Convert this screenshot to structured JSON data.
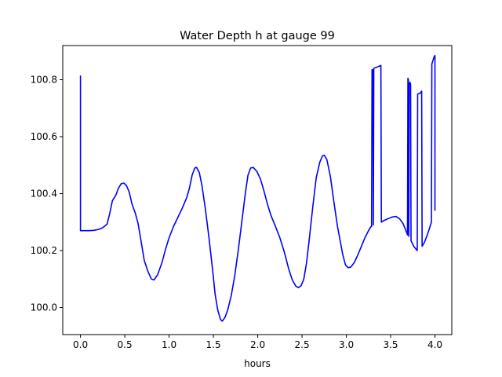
{
  "chart_data": {
    "type": "line",
    "title": "Water Depth h at gauge 99",
    "xlabel": "hours",
    "ylabel": "",
    "xlim": [
      -0.2,
      4.19
    ],
    "ylim": [
      99.905,
      100.92
    ],
    "xticks": [
      0.0,
      0.5,
      1.0,
      1.5,
      2.0,
      2.5,
      3.0,
      3.5,
      4.0
    ],
    "xtick_labels": [
      "0.0",
      "0.5",
      "1.0",
      "1.5",
      "2.0",
      "2.5",
      "3.0",
      "3.5",
      "4.0"
    ],
    "yticks": [
      100.0,
      100.2,
      100.4,
      100.6,
      100.8
    ],
    "ytick_labels": [
      "100.0",
      "100.2",
      "100.4",
      "100.6",
      "100.8"
    ],
    "grid": false,
    "legend": "none",
    "series": [
      {
        "color": "#0000ff",
        "points": [
          [
            0.0,
            100.815
          ],
          [
            0.0,
            100.27
          ],
          [
            0.05,
            100.27
          ],
          [
            0.1,
            100.27
          ],
          [
            0.15,
            100.271
          ],
          [
            0.2,
            100.274
          ],
          [
            0.25,
            100.28
          ],
          [
            0.3,
            100.293
          ],
          [
            0.33,
            100.33
          ],
          [
            0.36,
            100.375
          ],
          [
            0.4,
            100.395
          ],
          [
            0.43,
            100.42
          ],
          [
            0.46,
            100.435
          ],
          [
            0.49,
            100.437
          ],
          [
            0.52,
            100.428
          ],
          [
            0.55,
            100.405
          ],
          [
            0.58,
            100.365
          ],
          [
            0.62,
            100.33
          ],
          [
            0.65,
            100.295
          ],
          [
            0.68,
            100.24
          ],
          [
            0.72,
            100.165
          ],
          [
            0.76,
            100.128
          ],
          [
            0.8,
            100.1
          ],
          [
            0.83,
            100.097
          ],
          [
            0.87,
            100.115
          ],
          [
            0.92,
            100.158
          ],
          [
            0.96,
            100.205
          ],
          [
            1.0,
            100.245
          ],
          [
            1.05,
            100.285
          ],
          [
            1.1,
            100.317
          ],
          [
            1.15,
            100.35
          ],
          [
            1.2,
            100.387
          ],
          [
            1.23,
            100.42
          ],
          [
            1.26,
            100.465
          ],
          [
            1.29,
            100.49
          ],
          [
            1.31,
            100.492
          ],
          [
            1.34,
            100.475
          ],
          [
            1.37,
            100.43
          ],
          [
            1.41,
            100.345
          ],
          [
            1.45,
            100.245
          ],
          [
            1.49,
            100.135
          ],
          [
            1.52,
            100.045
          ],
          [
            1.55,
            99.99
          ],
          [
            1.58,
            99.958
          ],
          [
            1.6,
            99.952
          ],
          [
            1.63,
            99.965
          ],
          [
            1.66,
            99.99
          ],
          [
            1.7,
            100.04
          ],
          [
            1.74,
            100.11
          ],
          [
            1.78,
            100.2
          ],
          [
            1.82,
            100.3
          ],
          [
            1.86,
            100.4
          ],
          [
            1.89,
            100.465
          ],
          [
            1.92,
            100.49
          ],
          [
            1.95,
            100.492
          ],
          [
            1.99,
            100.478
          ],
          [
            2.03,
            100.452
          ],
          [
            2.07,
            100.41
          ],
          [
            2.11,
            100.363
          ],
          [
            2.15,
            100.323
          ],
          [
            2.2,
            100.285
          ],
          [
            2.25,
            100.245
          ],
          [
            2.3,
            100.195
          ],
          [
            2.35,
            100.135
          ],
          [
            2.39,
            100.097
          ],
          [
            2.43,
            100.075
          ],
          [
            2.46,
            100.07
          ],
          [
            2.49,
            100.077
          ],
          [
            2.52,
            100.1
          ],
          [
            2.55,
            100.155
          ],
          [
            2.58,
            100.235
          ],
          [
            2.62,
            100.35
          ],
          [
            2.66,
            100.455
          ],
          [
            2.7,
            100.51
          ],
          [
            2.73,
            100.532
          ],
          [
            2.75,
            100.535
          ],
          [
            2.78,
            100.52
          ],
          [
            2.82,
            100.46
          ],
          [
            2.86,
            100.37
          ],
          [
            2.9,
            100.285
          ],
          [
            2.93,
            100.235
          ],
          [
            2.96,
            100.185
          ],
          [
            2.99,
            100.15
          ],
          [
            3.02,
            100.14
          ],
          [
            3.05,
            100.142
          ],
          [
            3.09,
            100.158
          ],
          [
            3.13,
            100.185
          ],
          [
            3.17,
            100.215
          ],
          [
            3.21,
            100.245
          ],
          [
            3.25,
            100.27
          ],
          [
            3.28,
            100.285
          ],
          [
            3.285,
            100.285
          ],
          [
            3.29,
            100.835
          ],
          [
            3.3,
            100.835
          ],
          [
            3.305,
            100.29
          ],
          [
            3.31,
            100.84
          ],
          [
            3.35,
            100.845
          ],
          [
            3.39,
            100.85
          ],
          [
            3.395,
            100.3
          ],
          [
            3.42,
            100.305
          ],
          [
            3.47,
            100.312
          ],
          [
            3.52,
            100.318
          ],
          [
            3.56,
            100.32
          ],
          [
            3.6,
            100.312
          ],
          [
            3.64,
            100.295
          ],
          [
            3.67,
            100.272
          ],
          [
            3.69,
            100.255
          ],
          [
            3.695,
            100.805
          ],
          [
            3.7,
            100.8
          ],
          [
            3.705,
            100.25
          ],
          [
            3.71,
            100.79
          ],
          [
            3.72,
            100.79
          ],
          [
            3.725,
            100.785
          ],
          [
            3.73,
            100.235
          ],
          [
            3.76,
            100.215
          ],
          [
            3.8,
            100.2
          ],
          [
            3.805,
            100.75
          ],
          [
            3.83,
            100.752
          ],
          [
            3.85,
            100.76
          ],
          [
            3.855,
            100.215
          ],
          [
            3.88,
            100.228
          ],
          [
            3.91,
            100.252
          ],
          [
            3.94,
            100.28
          ],
          [
            3.96,
            100.3
          ],
          [
            3.965,
            100.855
          ],
          [
            3.98,
            100.87
          ],
          [
            3.99,
            100.88
          ],
          [
            4.0,
            100.885
          ],
          [
            4.0,
            100.34
          ]
        ]
      }
    ]
  }
}
